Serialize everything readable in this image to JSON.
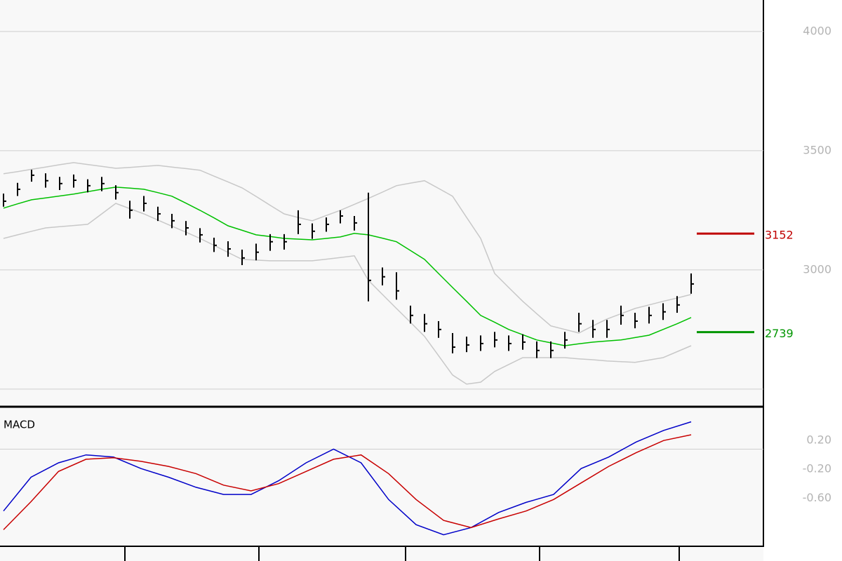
{
  "chart_data": [
    {
      "type": "stock",
      "ylim": [
        2426,
        4132
      ],
      "yticks": [
        3000,
        3500,
        4000
      ],
      "grid_lines": [
        2500,
        3000,
        3500,
        4000
      ],
      "high": [
        3320,
        3365,
        3420,
        3405,
        3390,
        3400,
        3380,
        3390,
        3355,
        3290,
        3310,
        3265,
        3235,
        3205,
        3175,
        3135,
        3120,
        3085,
        3110,
        3150,
        3150,
        3250,
        3195,
        3220,
        3250,
        3226,
        3324,
        3010,
        2990,
        2850,
        2815,
        2785,
        2735,
        2720,
        2725,
        2740,
        2725,
        2730,
        2700,
        2700,
        2740,
        2820,
        2790,
        2790,
        2850,
        2820,
        2845,
        2860,
        2890,
        2985
      ],
      "low": [
        3265,
        3310,
        3370,
        3345,
        3335,
        3345,
        3325,
        3330,
        3295,
        3215,
        3245,
        3205,
        3175,
        3145,
        3115,
        3075,
        3055,
        3020,
        3040,
        3080,
        3085,
        3150,
        3130,
        3160,
        3195,
        3165,
        2868,
        2935,
        2875,
        2775,
        2740,
        2715,
        2650,
        2655,
        2660,
        2675,
        2660,
        2665,
        2630,
        2630,
        2670,
        2740,
        2715,
        2715,
        2770,
        2755,
        2775,
        2790,
        2820,
        2900
      ],
      "close": [
        3288,
        3338,
        3397,
        3374,
        3362,
        3376,
        3353,
        3362,
        3324,
        3250,
        3279,
        3235,
        3206,
        3176,
        3147,
        3103,
        3088,
        3050,
        3074,
        3118,
        3118,
        3191,
        3162,
        3191,
        3226,
        3197,
        2956,
        2971,
        2912,
        2809,
        2774,
        2750,
        2676,
        2685,
        2691,
        2706,
        2691,
        2697,
        2662,
        2662,
        2706,
        2774,
        2750,
        2750,
        2809,
        2785,
        2809,
        2824,
        2853,
        2941
      ],
      "bar_color": "#000000",
      "series": [
        {
          "color": "#00c000",
          "values": [
            3259,
            3277,
            3294,
            3302,
            3310,
            3318,
            3328,
            3338,
            3347,
            3343,
            3338,
            3324,
            3309,
            3280,
            3250,
            3218,
            3185,
            3166,
            3147,
            3140,
            3132,
            3129,
            3126,
            3132,
            3138,
            3153,
            3147,
            3133,
            3118,
            3081,
            3044,
            2985,
            2926,
            2868,
            2809,
            2780,
            2750,
            2728,
            2706,
            2694,
            2682,
            2690,
            2697,
            2702,
            2706,
            2716,
            2726,
            2750,
            2774,
            2800
          ]
        },
        {
          "color": "#c8c8c8",
          "values": [
            3403,
            3412,
            3422,
            3431,
            3441,
            3450,
            3442,
            3434,
            3426,
            3430,
            3434,
            3438,
            3431,
            3425,
            3418,
            3393,
            3369,
            3344,
            3308,
            3271,
            3235,
            3220,
            3206,
            3228,
            3250,
            3275,
            3300,
            3326,
            3353,
            3364,
            3374,
            3342,
            3309,
            3220,
            3132,
            2985,
            2926,
            2868,
            2816,
            2765,
            2750,
            2735,
            2765,
            2794,
            2816,
            2838,
            2853,
            2868,
            2882,
            2897
          ]
        },
        {
          "color": "#c8c8c8",
          "values": [
            3132,
            3147,
            3162,
            3176,
            3181,
            3186,
            3191,
            3235,
            3279,
            3257,
            3235,
            3209,
            3183,
            3158,
            3132,
            3103,
            3073,
            3044,
            3041,
            3038,
            3038,
            3038,
            3038,
            3045,
            3052,
            3059,
            2956,
            2897,
            2838,
            2780,
            2721,
            2640,
            2559,
            2521,
            2529,
            2574,
            2603,
            2632,
            2632,
            2632,
            2632,
            2627,
            2623,
            2618,
            2615,
            2612,
            2622,
            2632,
            2657,
            2682
          ]
        }
      ],
      "levels": [
        {
          "value": 3152,
          "color": "#c00000"
        },
        {
          "value": 2739,
          "color": "#009600"
        }
      ]
    },
    {
      "type": "line",
      "title": "MACD",
      "ylim": [
        -1.28,
        0.67
      ],
      "yticks": [
        {
          "value": 0.2,
          "label": "0.20"
        },
        {
          "value": -0.2,
          "label": "-0.20"
        },
        {
          "value": -0.6,
          "label": "-0.60"
        }
      ],
      "grid_lines": [
        0.08
      ],
      "series": [
        {
          "color": "#0000c8",
          "values": [
            -0.78,
            -0.31,
            -0.11,
            0.0,
            -0.03,
            -0.19,
            -0.31,
            -0.45,
            -0.55,
            -0.55,
            -0.36,
            -0.11,
            0.08,
            -0.11,
            -0.62,
            -0.97,
            -1.11,
            -1.01,
            -0.8,
            -0.66,
            -0.55,
            -0.19,
            -0.03,
            0.18,
            0.34,
            0.46
          ]
        },
        {
          "color": "#c80000",
          "values": [
            -1.04,
            -0.65,
            -0.23,
            -0.06,
            -0.04,
            -0.09,
            -0.16,
            -0.26,
            -0.42,
            -0.5,
            -0.4,
            -0.23,
            -0.06,
            0.0,
            -0.26,
            -0.62,
            -0.91,
            -1.01,
            -0.89,
            -0.78,
            -0.62,
            -0.39,
            -0.16,
            0.03,
            0.2,
            0.28
          ]
        }
      ]
    }
  ]
}
